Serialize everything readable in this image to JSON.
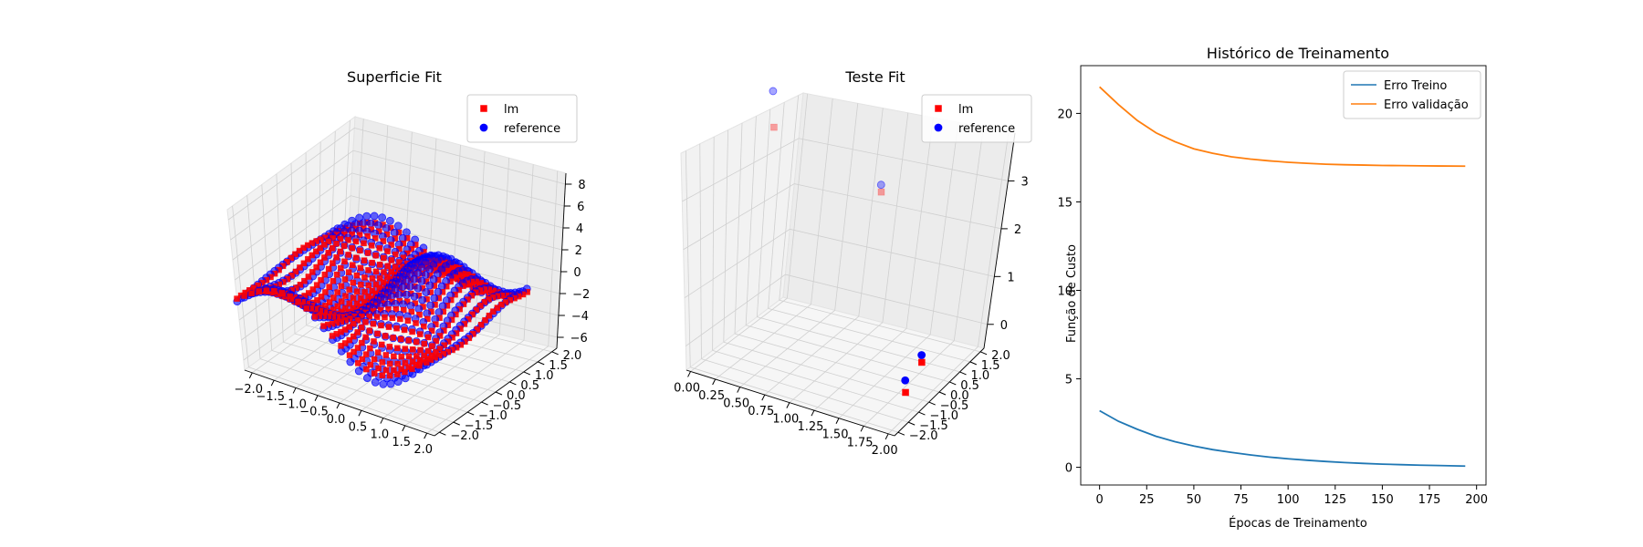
{
  "chart_data": [
    {
      "type": "scatter3d",
      "title": "Superficie Fit",
      "x_ticks": [
        "−2.0",
        "−1.5",
        "−1.0",
        "−0.5",
        "0.0",
        "0.5",
        "1.0",
        "1.5",
        "2.0"
      ],
      "y_ticks": [
        "−2.0",
        "−1.5",
        "−1.0",
        "−0.5",
        "0.0",
        "0.5",
        "1.0",
        "1.5",
        "2.0"
      ],
      "z_ticks": [
        "−6",
        "−4",
        "−2",
        "0",
        "2",
        "4",
        "6",
        "8"
      ],
      "xlim": [
        -2,
        2
      ],
      "ylim": [
        -2,
        2
      ],
      "zlim": [
        -7,
        9
      ],
      "surface_grid": {
        "x_range": [
          -2,
          2
        ],
        "y_range": [
          -2,
          2
        ],
        "steps": 25
      },
      "series": [
        {
          "name": "lm",
          "marker": "square",
          "color": "#ff0000"
        },
        {
          "name": "reference",
          "marker": "circle",
          "color": "#0000ff"
        }
      ],
      "legend_position": "upper-right"
    },
    {
      "type": "scatter3d",
      "title": "Teste Fit",
      "x_ticks": [
        "0.00",
        "0.25",
        "0.50",
        "0.75",
        "1.00",
        "1.25",
        "1.50",
        "1.75",
        "2.00"
      ],
      "y_ticks": [
        "−2.0",
        "−1.5",
        "−1.0",
        "−0.5",
        "0.0",
        "0.5",
        "1.0",
        "1.5",
        "2.0"
      ],
      "z_ticks": [
        "0",
        "1",
        "2",
        "3"
      ],
      "xlim": [
        0,
        2
      ],
      "ylim": [
        -2,
        2
      ],
      "zlim": [
        -0.5,
        4
      ],
      "series": [
        {
          "name": "lm",
          "marker": "square",
          "color": "#ff0000",
          "points": [
            [
              0.0,
              1.8,
              3.1
            ],
            [
              1.0,
              1.9,
              2.4
            ],
            [
              1.9,
              -0.4,
              0.35
            ],
            [
              1.95,
              -1.3,
              0.1
            ]
          ]
        },
        {
          "name": "reference",
          "marker": "circle",
          "color": "#0000ff",
          "points": [
            [
              0.0,
              1.8,
              3.85
            ],
            [
              1.0,
              1.9,
              2.55
            ],
            [
              1.9,
              -0.4,
              0.5
            ],
            [
              1.95,
              -1.3,
              0.35
            ]
          ]
        }
      ],
      "legend_position": "upper-right"
    },
    {
      "type": "line",
      "title": "Histórico de Treinamento",
      "xlabel": "Épocas de Treinamento",
      "ylabel": "Função de Custo",
      "xlim": [
        -10,
        205
      ],
      "ylim": [
        -1.0,
        22.7
      ],
      "x_ticks": [
        0,
        25,
        50,
        75,
        100,
        125,
        150,
        175,
        200
      ],
      "y_ticks": [
        0,
        5,
        10,
        15,
        20
      ],
      "legend_position": "upper-right",
      "series": [
        {
          "name": "Erro Treino",
          "color": "#1f77b4",
          "x": [
            0,
            10,
            20,
            30,
            40,
            50,
            60,
            70,
            80,
            90,
            100,
            110,
            120,
            130,
            140,
            150,
            160,
            170,
            180,
            194
          ],
          "y": [
            3.2,
            2.6,
            2.15,
            1.75,
            1.45,
            1.2,
            1.0,
            0.84,
            0.7,
            0.58,
            0.48,
            0.4,
            0.33,
            0.27,
            0.22,
            0.18,
            0.15,
            0.12,
            0.1,
            0.07
          ]
        },
        {
          "name": "Erro validação",
          "color": "#ff7f0e",
          "x": [
            0,
            10,
            20,
            30,
            40,
            50,
            60,
            70,
            80,
            90,
            100,
            110,
            120,
            130,
            140,
            150,
            160,
            170,
            180,
            194
          ],
          "y": [
            21.5,
            20.5,
            19.6,
            18.9,
            18.4,
            18.0,
            17.75,
            17.55,
            17.42,
            17.32,
            17.24,
            17.18,
            17.13,
            17.1,
            17.08,
            17.06,
            17.05,
            17.04,
            17.03,
            17.02
          ]
        }
      ]
    }
  ]
}
